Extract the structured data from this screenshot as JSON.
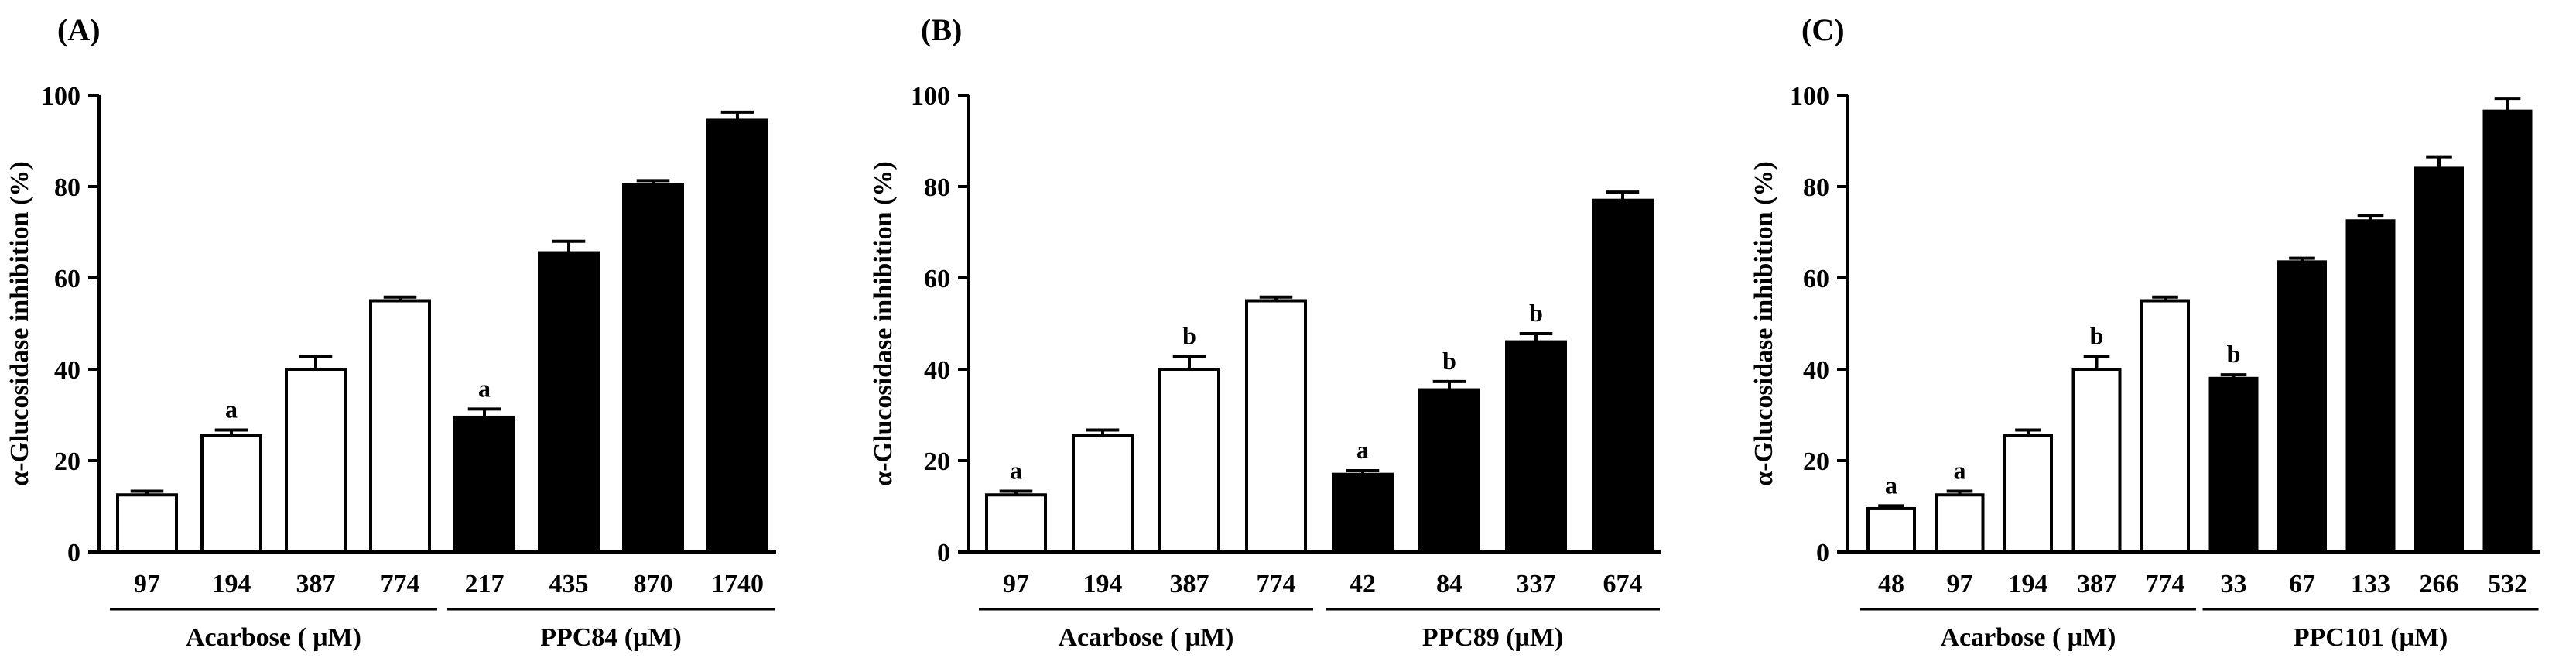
{
  "y_axis_label": "α-Glucosidase inhibition (%)",
  "colors": {
    "acarbose": "#ffffff",
    "ppc": "#000000",
    "stroke": "#000000"
  },
  "chart_data": [
    {
      "type": "bar",
      "panel_label": "(A)",
      "ylabel": "α-Glucosidase inhibition (%)",
      "ylim": [
        0,
        100
      ],
      "yticks": [
        "0",
        "20",
        "40",
        "60",
        "80",
        "100"
      ],
      "groups": [
        {
          "name": "Acarbose ( μM)",
          "fill": "white",
          "categories": [
            "97",
            "194",
            "387",
            "774"
          ],
          "values": [
            12.5,
            25.5,
            40,
            55
          ],
          "errors": [
            0.8,
            1.2,
            2.8,
            0.8
          ],
          "letters": [
            "",
            "a",
            "",
            ""
          ]
        },
        {
          "name": "PPC84 (μM)",
          "fill": "black",
          "categories": [
            "217",
            "435",
            "870",
            "1740"
          ],
          "values": [
            29.5,
            65.5,
            80.5,
            94.5
          ],
          "errors": [
            1.8,
            2.5,
            0.8,
            1.8
          ],
          "letters": [
            "a",
            "",
            "",
            ""
          ]
        }
      ]
    },
    {
      "type": "bar",
      "panel_label": "(B)",
      "ylabel": "α-Glucosidase inhibition (%)",
      "ylim": [
        0,
        100
      ],
      "yticks": [
        "0",
        "20",
        "40",
        "60",
        "80",
        "100"
      ],
      "groups": [
        {
          "name": "Acarbose ( μM)",
          "fill": "white",
          "categories": [
            "97",
            "194",
            "387",
            "774"
          ],
          "values": [
            12.5,
            25.5,
            40,
            55
          ],
          "errors": [
            0.8,
            1.2,
            2.8,
            0.8
          ],
          "letters": [
            "a",
            "",
            "b",
            ""
          ]
        },
        {
          "name": "PPC89 (μM)",
          "fill": "black",
          "categories": [
            "42",
            "84",
            "337",
            "674"
          ],
          "values": [
            17,
            35.5,
            46,
            77
          ],
          "errors": [
            0.8,
            1.8,
            1.8,
            1.8
          ],
          "letters": [
            "a",
            "b",
            "b",
            ""
          ]
        }
      ]
    },
    {
      "type": "bar",
      "panel_label": "(C)",
      "ylabel": "α-Glucosidase inhibition (%)",
      "ylim": [
        0,
        100
      ],
      "yticks": [
        "0",
        "20",
        "40",
        "60",
        "80",
        "100"
      ],
      "groups": [
        {
          "name": "Acarbose ( μM)",
          "fill": "white",
          "categories": [
            "48",
            "97",
            "194",
            "387",
            "774"
          ],
          "values": [
            9.5,
            12.5,
            25.5,
            40,
            55
          ],
          "errors": [
            0.6,
            0.8,
            1.2,
            2.8,
            0.8
          ],
          "letters": [
            "a",
            "a",
            "",
            "b",
            ""
          ]
        },
        {
          "name": "PPC101 (μM)",
          "fill": "black",
          "categories": [
            "33",
            "67",
            "133",
            "266",
            "532"
          ],
          "values": [
            38,
            63.5,
            72.5,
            84,
            96.5
          ],
          "errors": [
            0.8,
            0.8,
            1.2,
            2.5,
            2.8
          ],
          "letters": [
            "b",
            "",
            "",
            "",
            ""
          ]
        }
      ]
    }
  ]
}
